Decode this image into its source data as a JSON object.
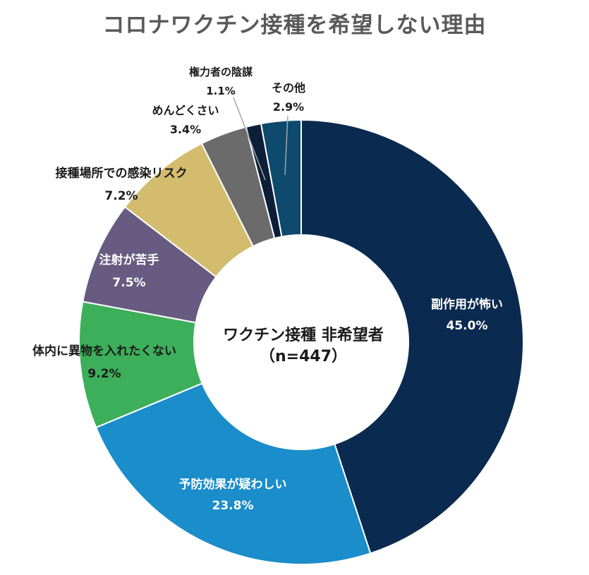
{
  "chart_data": {
    "type": "pie",
    "title": "コロナワクチン接種を希望しない理由",
    "center_label": "ワクチン接種 非希望者",
    "center_sub": "（n=447）",
    "slices": [
      {
        "label": "副作用が怖い",
        "value": 45.0,
        "value_text": "45.0%",
        "color": "#0a2a4f"
      },
      {
        "label": "予防効果が疑わしい",
        "value": 23.8,
        "value_text": "23.8%",
        "color": "#1a8dca"
      },
      {
        "label": "体内に異物を入れたくない",
        "value": 9.2,
        "value_text": "9.2%",
        "color": "#3daf5a"
      },
      {
        "label": "注射が苦手",
        "value": 7.5,
        "value_text": "7.5%",
        "color": "#675b82"
      },
      {
        "label": "接種場所での感染リスク",
        "value": 7.2,
        "value_text": "7.2%",
        "color": "#d4bc6e"
      },
      {
        "label": "めんどくさい",
        "value": 3.4,
        "value_text": "3.4%",
        "color": "#6b6b6b"
      },
      {
        "label": "権力者の陰謀",
        "value": 1.1,
        "value_text": "1.1%",
        "color": "#0c1e38"
      },
      {
        "label": "その他",
        "value": 2.9,
        "value_text": "2.9%",
        "color": "#0d4a6e"
      }
    ]
  }
}
